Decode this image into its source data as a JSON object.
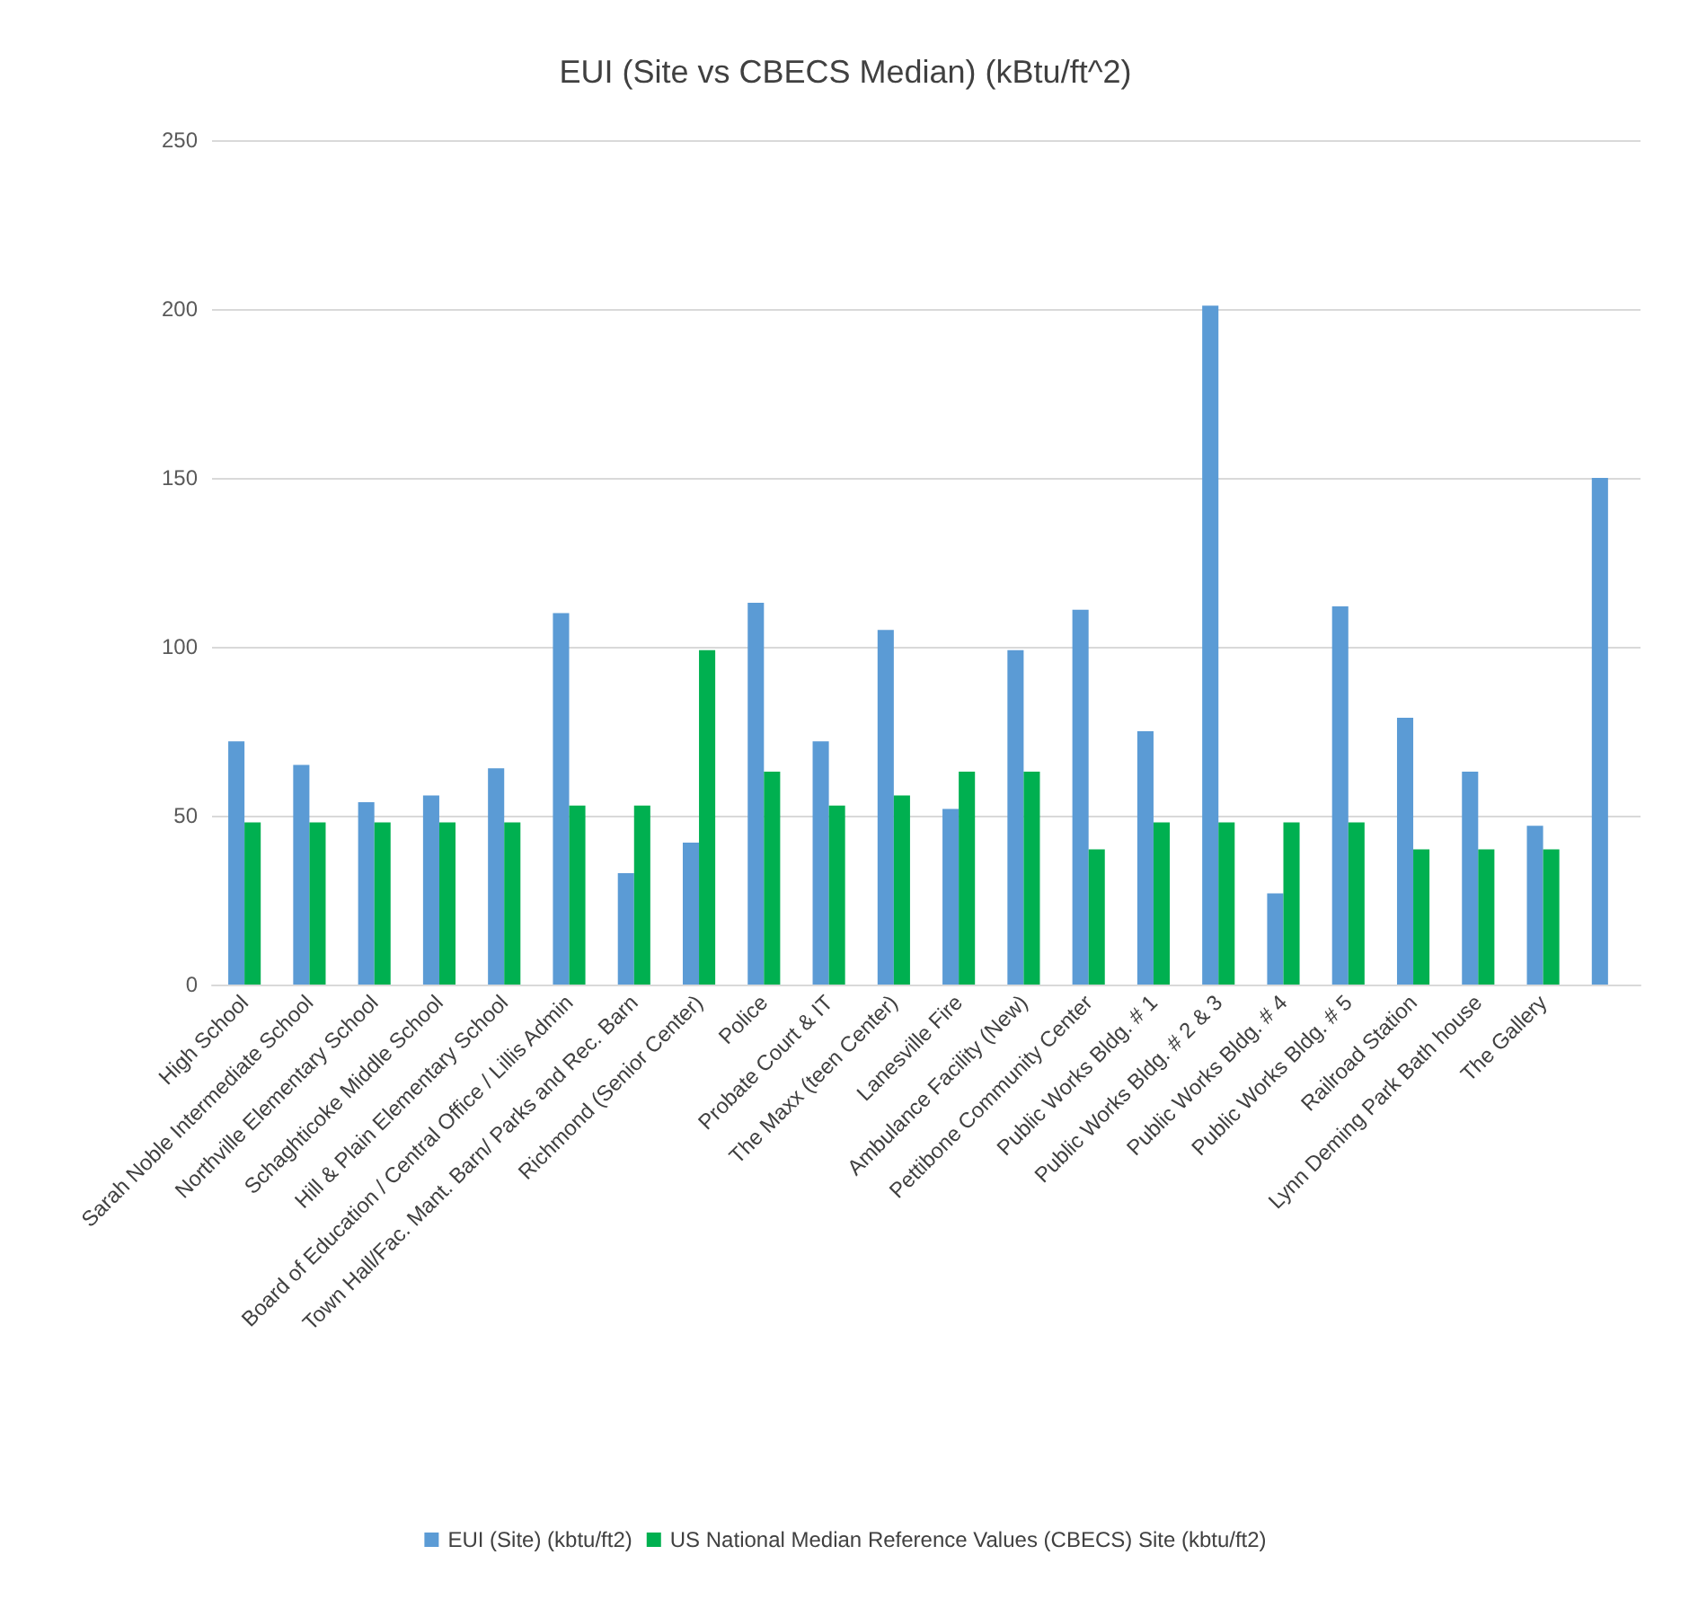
{
  "chart_data": {
    "type": "bar",
    "title": "EUI (Site vs CBECS Median) (kBtu/ft^2)",
    "categories": [
      "High School",
      "Sarah Noble Intermediate School",
      "Northville Elementary School",
      "Schaghticoke Middle School",
      "Hill & Plain Elementary School",
      "Board of Education / Central Office / Lillis Admin",
      "Town Hall/Fac. Mant. Barn/ Parks and Rec. Barn",
      "Richmond (Senior Center)",
      "Police",
      "Probate Court & IT",
      "The Maxx (teen Center)",
      "Lanesville Fire",
      "Ambulance Facility (New)",
      "Pettibone Community Center",
      "Public Works Bldg. # 1",
      "Public Works Bldg. # 2 & 3",
      "Public Works Bldg. # 4",
      "Public Works Bldg. # 5",
      "Railroad Station",
      "Lynn Deming Park Bath house",
      "The Gallery",
      null
    ],
    "series": [
      {
        "name": "EUI (Site) (kbtu/ft2)",
        "color": "#5b9bd5",
        "values": [
          72,
          65,
          54,
          56,
          64,
          110,
          33,
          42,
          113,
          72,
          105,
          52,
          99,
          111,
          75,
          201,
          27,
          112,
          79,
          63,
          47,
          150
        ]
      },
      {
        "name": "US National Median Reference Values (CBECS) Site (kbtu/ft2)",
        "color": "#00b050",
        "values": [
          48,
          48,
          48,
          48,
          48,
          53,
          53,
          99,
          63,
          53,
          56,
          63,
          63,
          40,
          48,
          48,
          48,
          48,
          40,
          40,
          40,
          null
        ]
      }
    ],
    "ylim": [
      0,
      250
    ],
    "yticks": [
      0,
      50,
      100,
      150,
      200,
      250
    ],
    "grid": "y",
    "legend": "bottom"
  }
}
